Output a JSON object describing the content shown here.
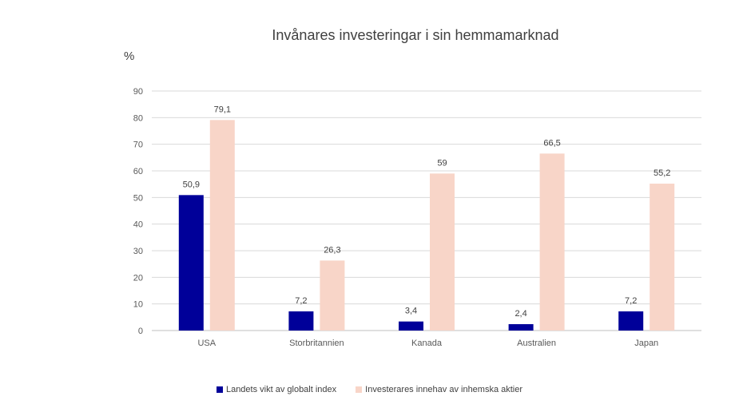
{
  "chart_data": {
    "type": "bar",
    "title": "Invånares investeringar i sin hemmamarknad",
    "ylabel": "%",
    "xlabel": "",
    "categories": [
      "USA",
      "Storbritannien",
      "Kanada",
      "Australien",
      "Japan"
    ],
    "series": [
      {
        "name": "Landets vikt av globalt index",
        "values": [
          50.9,
          7.2,
          3.4,
          2.4,
          7.2
        ],
        "labels": [
          "50,9",
          "7,2",
          "3,4",
          "2,4",
          "7,2"
        ],
        "color": "#000099"
      },
      {
        "name": "Investerares innehav av inhemska aktier",
        "values": [
          79.1,
          26.3,
          59,
          66.5,
          55.2
        ],
        "labels": [
          "79,1",
          "26,3",
          "59",
          "66,5",
          "55,2"
        ],
        "color": "#F8D5C8"
      }
    ],
    "ylim": [
      0,
      90
    ],
    "yticks": [
      "0",
      "10",
      "20",
      "30",
      "40",
      "50",
      "60",
      "70",
      "80",
      "90"
    ],
    "grid": true,
    "legend_position": "bottom"
  }
}
